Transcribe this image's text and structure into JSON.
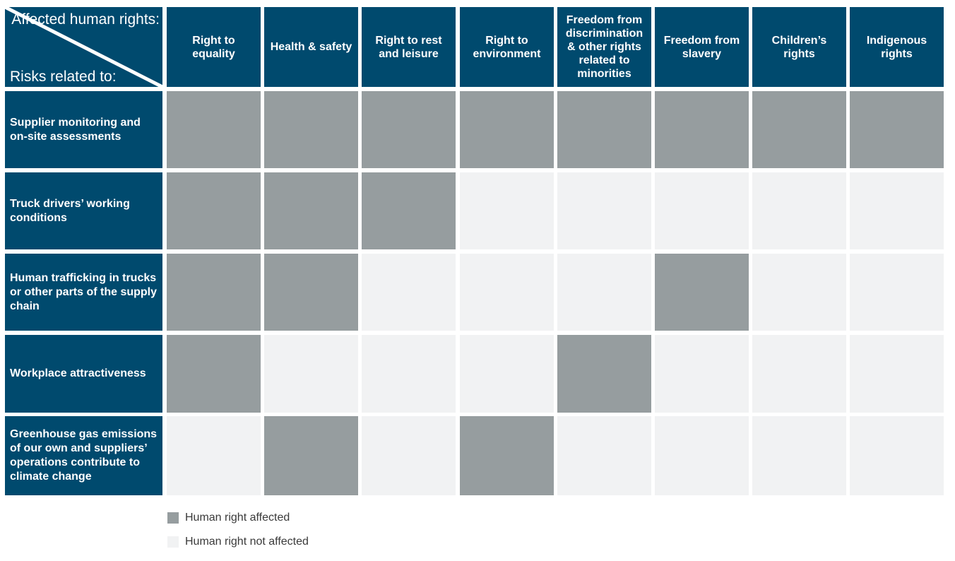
{
  "colors": {
    "header": "#004a6e",
    "affected": "#969d9f",
    "not_affected": "#f1f2f3"
  },
  "corner": {
    "top_label": "Affected human rights:",
    "bottom_label": "Risks related to:"
  },
  "chart_data": {
    "type": "table",
    "columns": [
      "Right to equality",
      "Health & safety",
      "Right to rest and leisure",
      "Right to environment",
      "Freedom from discrimination & other rights related to minorities",
      "Freedom from slavery",
      "Children’s rights",
      "Indigenous rights"
    ],
    "rows": [
      {
        "label": "Supplier monitoring and on-site assessments",
        "values": [
          1,
          1,
          1,
          1,
          1,
          1,
          1,
          1
        ]
      },
      {
        "label": "Truck drivers’ working conditions",
        "values": [
          1,
          1,
          1,
          0,
          0,
          0,
          0,
          0
        ]
      },
      {
        "label": "Human trafficking in trucks or other parts of the supply chain",
        "values": [
          1,
          1,
          0,
          0,
          0,
          1,
          0,
          0
        ]
      },
      {
        "label": "Workplace attractiveness",
        "values": [
          1,
          0,
          0,
          0,
          1,
          0,
          0,
          0
        ]
      },
      {
        "label": "Greenhouse gas emissions of our own and suppliers’ operations contribute to climate change",
        "values": [
          0,
          1,
          0,
          1,
          0,
          0,
          0,
          0
        ]
      }
    ]
  },
  "legend": {
    "affected": "Human right affected",
    "not_affected": "Human right not affected"
  }
}
